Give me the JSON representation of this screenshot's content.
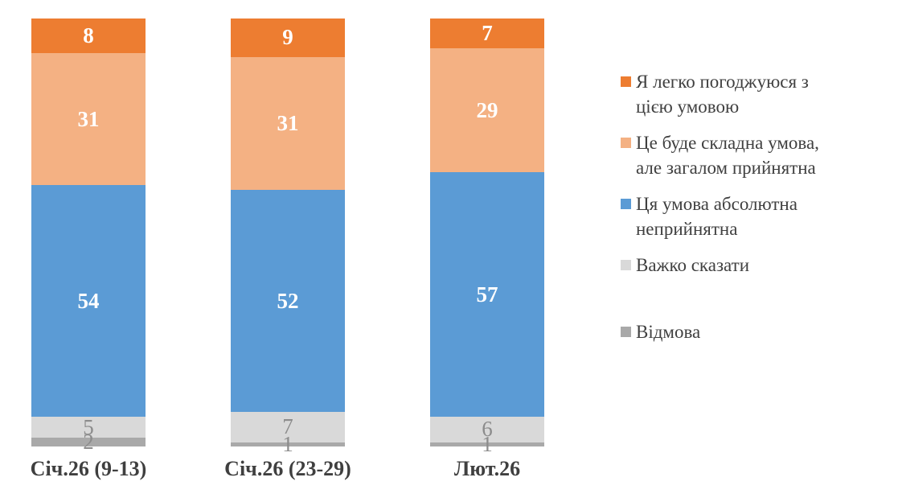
{
  "chart_data": {
    "type": "bar",
    "stacked": true,
    "orientation": "vertical",
    "units": "percent",
    "title": "",
    "xlabel": "",
    "ylabel": "",
    "ylim": [
      0,
      100
    ],
    "grid": false,
    "legend_position": "right",
    "categories": [
      "Січ.26 (9-13)",
      "Січ.26 (23-29)",
      "Лют.26"
    ],
    "series": [
      {
        "name": "Я легко погоджуюся з цією умовою",
        "color": "#ED7D31",
        "values": [
          8,
          9,
          7
        ],
        "label_style": "white-bold"
      },
      {
        "name": "Це буде складна умова, але загалом прийнятна",
        "color": "#F4B183",
        "values": [
          31,
          31,
          29
        ],
        "label_style": "white-bold"
      },
      {
        "name": "Ця умова абсолютна неприйнятна",
        "color": "#5B9BD5",
        "values": [
          54,
          52,
          57
        ],
        "label_style": "white-bold"
      },
      {
        "name": "Важко сказати",
        "color": "#D9D9D9",
        "values": [
          5,
          7,
          6
        ],
        "label_style": "gray"
      },
      {
        "name": "Відмова",
        "color": "#A9A9A9",
        "values": [
          2,
          1,
          1
        ],
        "label_style": "gray"
      }
    ]
  },
  "legend": {
    "items": [
      {
        "label": "Я легко погоджуюся з\nцією умовою",
        "color": "#ED7D31"
      },
      {
        "label": "Це буде складна умова,\nале загалом прийнятна",
        "color": "#F4B183"
      },
      {
        "label": "Ця умова абсолютна\nнеприйнятна",
        "color": "#5B9BD5"
      },
      {
        "label": "Важко сказати",
        "color": "#D9D9D9"
      },
      {
        "label": "Відмова",
        "color": "#A9A9A9"
      }
    ]
  },
  "colors": {
    "background": "#FFFFFF",
    "data_label_white": "#FFFFFF",
    "data_label_gray": "#8C8C8C",
    "category_text": "#3F3F3F",
    "legend_text": "#404040"
  }
}
